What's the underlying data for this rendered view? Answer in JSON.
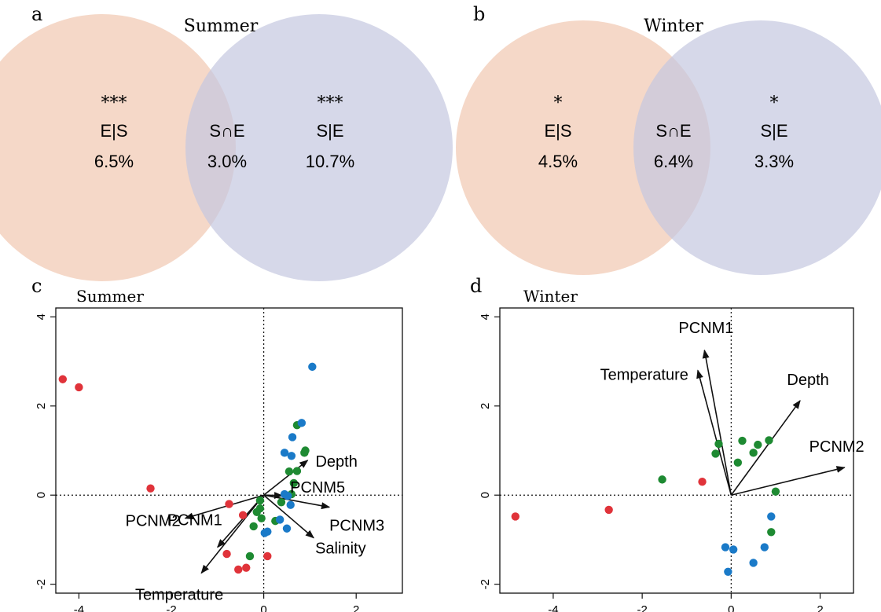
{
  "colors": {
    "env_circle": "#f1c7b0",
    "spatial_circle": "#c4c8e0",
    "red_points": "#e0333a",
    "green_points": "#1e8a32",
    "blue_points": "#1a7ac8"
  },
  "chart_data": [
    {
      "panel": "a",
      "type": "venn",
      "title": "Summer",
      "sets": [
        {
          "label": "E|S",
          "value": "6.5%",
          "significance": "***"
        },
        {
          "label": "S∩E",
          "value": "3.0%"
        },
        {
          "label": "S|E",
          "value": "10.7%",
          "significance": "***"
        }
      ]
    },
    {
      "panel": "b",
      "type": "venn",
      "title": "Winter",
      "sets": [
        {
          "label": "E|S",
          "value": "4.5%",
          "significance": "*"
        },
        {
          "label": "S∩E",
          "value": "6.4%"
        },
        {
          "label": "S|E",
          "value": "3.3%",
          "significance": "*"
        }
      ]
    },
    {
      "panel": "c",
      "type": "scatter",
      "title": "Summer",
      "xlim": [
        -4.5,
        3
      ],
      "ylim": [
        -2.2,
        4.2
      ],
      "xticks": [
        "-4",
        "-2",
        "0",
        "2"
      ],
      "yticks": [
        "-2",
        "0",
        "2",
        "4"
      ],
      "xtick_values": [
        -4,
        -2,
        0,
        2
      ],
      "ytick_values": [
        -2,
        0,
        2,
        4
      ],
      "series": [
        {
          "color": "red",
          "points": [
            [
              -4.35,
              2.6
            ],
            [
              -4.0,
              2.42
            ],
            [
              -2.45,
              0.15
            ],
            [
              -0.75,
              -0.2
            ],
            [
              -0.45,
              -0.45
            ],
            [
              -0.8,
              -1.32
            ],
            [
              -0.55,
              -1.67
            ],
            [
              -0.38,
              -1.63
            ],
            [
              0.08,
              -1.37
            ]
          ]
        },
        {
          "color": "green",
          "points": [
            [
              0.72,
              1.57
            ],
            [
              0.9,
              1.0
            ],
            [
              0.88,
              0.95
            ],
            [
              0.55,
              0.53
            ],
            [
              0.72,
              0.54
            ],
            [
              0.65,
              0.27
            ],
            [
              0.6,
              0.02
            ],
            [
              0.38,
              -0.16
            ],
            [
              -0.08,
              -0.12
            ],
            [
              -0.08,
              -0.3
            ],
            [
              -0.15,
              -0.38
            ],
            [
              -0.05,
              -0.52
            ],
            [
              0.25,
              -0.58
            ],
            [
              -0.22,
              -0.7
            ],
            [
              -0.3,
              -1.37
            ]
          ]
        },
        {
          "color": "blue",
          "points": [
            [
              1.05,
              2.88
            ],
            [
              0.82,
              1.62
            ],
            [
              0.62,
              1.3
            ],
            [
              0.45,
              0.95
            ],
            [
              0.6,
              0.88
            ],
            [
              0.45,
              0.02
            ],
            [
              0.52,
              -0.02
            ],
            [
              0.58,
              -0.22
            ],
            [
              0.35,
              -0.55
            ],
            [
              0.5,
              -0.75
            ],
            [
              0.02,
              -0.85
            ],
            [
              0.08,
              -0.82
            ]
          ]
        }
      ],
      "arrows": [
        {
          "label": "Depth",
          "x": 0.95,
          "y": 0.78
        },
        {
          "label": "PCNM5",
          "x": 0.4,
          "y": -0.01
        },
        {
          "label": "PCNM3",
          "x": 1.42,
          "y": -0.27
        },
        {
          "label": "Salinity",
          "x": 1.08,
          "y": -0.96
        },
        {
          "label": "PCNM2",
          "x": -1.7,
          "y": -0.52
        },
        {
          "label": "PCNM1",
          "x": -1.0,
          "y": -1.17
        },
        {
          "label": "Temperature",
          "x": -1.35,
          "y": -1.75
        }
      ]
    },
    {
      "panel": "d",
      "type": "scatter",
      "title": "Winter",
      "xlim": [
        -5.2,
        2.75
      ],
      "ylim": [
        -2.2,
        4.2
      ],
      "xticks": [
        "-4",
        "-2",
        "0",
        "2"
      ],
      "yticks": [
        "-2",
        "0",
        "2",
        "4"
      ],
      "xtick_values": [
        -4,
        -2,
        0,
        2
      ],
      "ytick_values": [
        -2,
        0,
        2,
        4
      ],
      "series": [
        {
          "color": "red",
          "points": [
            [
              -4.85,
              -0.48
            ],
            [
              -2.75,
              -0.33
            ],
            [
              -0.65,
              0.3
            ]
          ]
        },
        {
          "color": "green",
          "points": [
            [
              -1.55,
              0.35
            ],
            [
              -0.28,
              1.15
            ],
            [
              -0.35,
              0.93
            ],
            [
              0.25,
              1.22
            ],
            [
              0.6,
              1.13
            ],
            [
              0.5,
              0.95
            ],
            [
              0.85,
              1.23
            ],
            [
              0.15,
              0.73
            ],
            [
              1.0,
              0.08
            ],
            [
              0.9,
              -0.83
            ]
          ]
        },
        {
          "color": "blue",
          "points": [
            [
              0.9,
              -0.48
            ],
            [
              0.75,
              -1.17
            ],
            [
              -0.13,
              -1.17
            ],
            [
              0.05,
              -1.22
            ],
            [
              0.5,
              -1.52
            ],
            [
              -0.07,
              -1.72
            ]
          ]
        }
      ],
      "arrows": [
        {
          "label": "PCNM1",
          "x": -0.6,
          "y": 3.25
        },
        {
          "label": "Temperature",
          "x": -0.75,
          "y": 2.8
        },
        {
          "label": "Depth",
          "x": 1.55,
          "y": 2.12
        },
        {
          "label": "PCNM2",
          "x": 2.55,
          "y": 0.62
        }
      ]
    }
  ],
  "labels": {
    "panel_a": "a",
    "panel_b": "b",
    "panel_c": "c",
    "panel_d": "d"
  }
}
